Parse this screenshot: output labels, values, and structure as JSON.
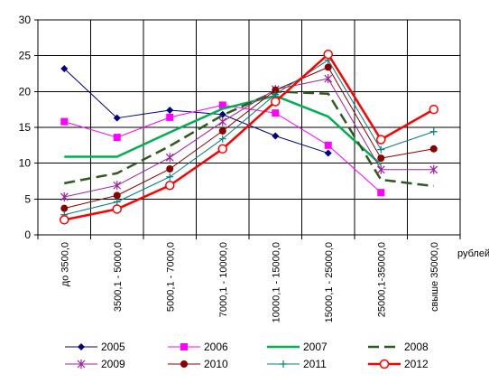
{
  "chart_data": {
    "type": "line",
    "categories": [
      "до 3500,0",
      "3500,1 - 5000,0",
      "5000,1 - 7000,0",
      "7000,1 - 10000,0",
      "10000,1 - 15000,0",
      "15000,1 - 25000,0",
      "25000,1-35000,0",
      "свыше 35000,0"
    ],
    "unit_label": "рублей",
    "ylim": [
      0,
      30
    ],
    "yticks": [
      0,
      5,
      10,
      15,
      20,
      25,
      30
    ],
    "grid": true,
    "legend_position": "bottom",
    "series": [
      {
        "name": "2005",
        "color": "#000080",
        "dash": "solid",
        "width": 1,
        "marker": "diamond",
        "values": [
          23.2,
          16.3,
          17.4,
          16.8,
          13.8,
          11.4,
          null,
          null
        ]
      },
      {
        "name": "2006",
        "color": "#ff00ff",
        "dash": "solid",
        "width": 1,
        "marker": "square",
        "values": [
          15.8,
          13.6,
          16.4,
          18.1,
          17.0,
          12.5,
          5.9,
          null
        ]
      },
      {
        "name": "2007",
        "color": "#00b050",
        "dash": "solid",
        "width": 2.5,
        "marker": "none",
        "values": [
          10.9,
          10.9,
          14.3,
          17.6,
          19.4,
          16.5,
          9.8,
          null
        ]
      },
      {
        "name": "2008",
        "color": "#2e5a1c",
        "dash": "dashed",
        "width": 2.5,
        "marker": "none",
        "values": [
          7.2,
          8.6,
          12.4,
          16.7,
          20.0,
          19.7,
          7.7,
          6.8
        ]
      },
      {
        "name": "2009",
        "color": "#a020a0",
        "dash": "solid",
        "width": 1,
        "marker": "asterisk",
        "values": [
          5.3,
          6.9,
          10.8,
          15.8,
          20.3,
          21.8,
          9.1,
          9.1
        ]
      },
      {
        "name": "2010",
        "color": "#8b0000",
        "dash": "solid",
        "width": 1,
        "marker": "circle-filled",
        "values": [
          3.7,
          5.5,
          9.2,
          14.5,
          20.2,
          23.4,
          10.7,
          12.0
        ]
      },
      {
        "name": "2011",
        "color": "#008080",
        "dash": "solid",
        "width": 1,
        "marker": "plus",
        "values": [
          2.8,
          4.6,
          8.1,
          13.4,
          19.6,
          24.4,
          11.9,
          14.4
        ]
      },
      {
        "name": "2012",
        "color": "#ff0000",
        "dash": "solid",
        "width": 2.5,
        "marker": "circle-open",
        "values": [
          2.1,
          3.6,
          6.9,
          12.0,
          18.6,
          25.2,
          13.3,
          17.5
        ]
      }
    ]
  }
}
